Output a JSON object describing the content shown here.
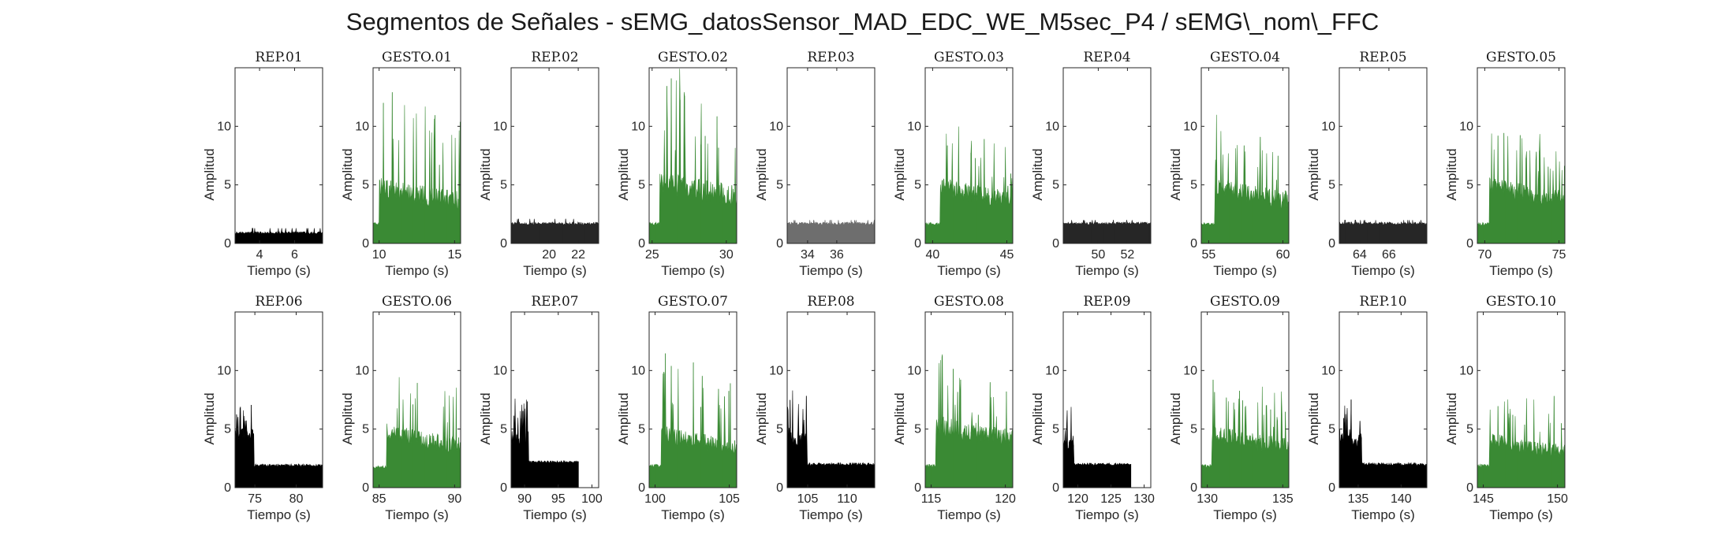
{
  "figure_title": "Segmentos de Señales - sEMG_datosSensor_MAD_EDC_WE_M5sec_P4 / sEMG\\_nom\\_FFC",
  "colors": {
    "rep": "#000000",
    "rep_alt": "#262626",
    "rep_gray": "#6e6e6e",
    "gesto": "#3a8a34",
    "axis": "#262626"
  },
  "chart_data": [
    {
      "type": "bar",
      "title": "REP_01",
      "kind": "rep",
      "color": "#000000",
      "xlim": [
        2.6,
        7.6
      ],
      "ylim": [
        0,
        15
      ],
      "xticks": [
        4,
        6
      ],
      "yticks": [
        0,
        5,
        10
      ],
      "xlabel": "Tiempo (s)",
      "ylabel": "Amplitud",
      "x_range": [
        2.6,
        7.6
      ],
      "baseline": 0.9,
      "noise": 0.2,
      "peak": 1.3,
      "seed": 1
    },
    {
      "type": "bar",
      "title": "GESTO_01",
      "kind": "gesto",
      "color": "#3a8a34",
      "xlim": [
        9.6,
        15.4
      ],
      "ylim": [
        0,
        15
      ],
      "xticks": [
        10,
        15
      ],
      "yticks": [
        0,
        5,
        10
      ],
      "xlabel": "Tiempo (s)",
      "ylabel": "Amplitud",
      "x_range": [
        9.6,
        15.4
      ],
      "onset": 10.0,
      "pre_level": 1.8,
      "baseline": 3.5,
      "noise": 1.7,
      "peak": 12.0,
      "seed": 2
    },
    {
      "type": "bar",
      "title": "REP_02",
      "kind": "rep",
      "color": "#262626",
      "xlim": [
        17.4,
        23.4
      ],
      "ylim": [
        0,
        15
      ],
      "xticks": [
        20,
        22
      ],
      "yticks": [
        0,
        5,
        10
      ],
      "xlabel": "Tiempo (s)",
      "ylabel": "Amplitud",
      "x_range": [
        17.4,
        23.4
      ],
      "baseline": 1.7,
      "noise": 0.25,
      "peak": 2.1,
      "seed": 3
    },
    {
      "type": "bar",
      "title": "GESTO_02",
      "kind": "gesto",
      "color": "#3a8a34",
      "xlim": [
        24.8,
        30.7
      ],
      "ylim": [
        0,
        15
      ],
      "xticks": [
        25,
        30
      ],
      "yticks": [
        0,
        5,
        10
      ],
      "xlabel": "Tiempo (s)",
      "ylabel": "Amplitud",
      "x_range": [
        24.8,
        30.7
      ],
      "onset": 25.5,
      "pre_level": 1.8,
      "baseline": 3.9,
      "noise": 1.9,
      "peak": 14.8,
      "seed": 4
    },
    {
      "type": "bar",
      "title": "REP_03",
      "kind": "rep",
      "color": "#6e6e6e",
      "xlim": [
        32.6,
        38.6
      ],
      "ylim": [
        0,
        15
      ],
      "xticks": [
        34,
        36
      ],
      "yticks": [
        0,
        5,
        10
      ],
      "xlabel": "Tiempo (s)",
      "ylabel": "Amplitud",
      "x_range": [
        32.6,
        38.6
      ],
      "baseline": 1.7,
      "noise": 0.25,
      "peak": 2.0,
      "seed": 5
    },
    {
      "type": "bar",
      "title": "GESTO_03",
      "kind": "gesto",
      "color": "#3a8a34",
      "xlim": [
        39.5,
        45.4
      ],
      "ylim": [
        0,
        15
      ],
      "xticks": [
        40,
        45
      ],
      "yticks": [
        0,
        5,
        10
      ],
      "xlabel": "Tiempo (s)",
      "ylabel": "Amplitud",
      "x_range": [
        39.5,
        45.4
      ],
      "onset": 40.5,
      "pre_level": 1.8,
      "baseline": 3.6,
      "noise": 1.6,
      "peak": 9.8,
      "seed": 6
    },
    {
      "type": "bar",
      "title": "REP_04",
      "kind": "rep",
      "color": "#262626",
      "xlim": [
        47.6,
        53.6
      ],
      "ylim": [
        0,
        15
      ],
      "xticks": [
        50,
        52
      ],
      "yticks": [
        0,
        5,
        10
      ],
      "xlabel": "Tiempo (s)",
      "ylabel": "Amplitud",
      "x_range": [
        47.6,
        53.6
      ],
      "baseline": 1.7,
      "noise": 0.25,
      "peak": 2.0,
      "seed": 7
    },
    {
      "type": "bar",
      "title": "GESTO_04",
      "kind": "gesto",
      "color": "#3a8a34",
      "xlim": [
        54.5,
        60.4
      ],
      "ylim": [
        0,
        15
      ],
      "xticks": [
        55,
        60
      ],
      "yticks": [
        0,
        5,
        10
      ],
      "xlabel": "Tiempo (s)",
      "ylabel": "Amplitud",
      "x_range": [
        54.5,
        60.4
      ],
      "onset": 55.4,
      "pre_level": 1.8,
      "baseline": 3.6,
      "noise": 1.6,
      "peak": 9.4,
      "seed": 8
    },
    {
      "type": "bar",
      "title": "REP_05",
      "kind": "rep",
      "color": "#262626",
      "xlim": [
        62.6,
        68.6
      ],
      "ylim": [
        0,
        15
      ],
      "xticks": [
        64,
        66
      ],
      "yticks": [
        0,
        5,
        10
      ],
      "xlabel": "Tiempo (s)",
      "ylabel": "Amplitud",
      "x_range": [
        62.6,
        68.6
      ],
      "baseline": 1.7,
      "noise": 0.25,
      "peak": 2.0,
      "seed": 9
    },
    {
      "type": "bar",
      "title": "GESTO_05",
      "kind": "gesto",
      "color": "#3a8a34",
      "xlim": [
        69.5,
        75.4
      ],
      "ylim": [
        0,
        15
      ],
      "xticks": [
        70,
        75
      ],
      "yticks": [
        0,
        5,
        10
      ],
      "xlabel": "Tiempo (s)",
      "ylabel": "Amplitud",
      "x_range": [
        69.5,
        75.4
      ],
      "onset": 70.3,
      "pre_level": 1.8,
      "baseline": 3.7,
      "noise": 1.5,
      "peak": 9.4,
      "seed": 10
    },
    {
      "type": "bar",
      "title": "REP_06",
      "kind": "rep_burst",
      "color": "#000000",
      "xlim": [
        72.6,
        83.2
      ],
      "ylim": [
        0,
        15
      ],
      "xticks": [
        75,
        80
      ],
      "yticks": [
        0,
        5,
        10
      ],
      "xlabel": "Tiempo (s)",
      "ylabel": "Amplitud",
      "x_range": [
        72.6,
        83.2
      ],
      "burst_end": 74.9,
      "burst_level": 4.2,
      "baseline": 1.9,
      "noise": 0.25,
      "peak": 6.9,
      "seed": 11
    },
    {
      "type": "bar",
      "title": "GESTO_06",
      "kind": "gesto",
      "color": "#3a8a34",
      "xlim": [
        84.6,
        90.4
      ],
      "ylim": [
        0,
        15
      ],
      "xticks": [
        85,
        90
      ],
      "yticks": [
        0,
        5,
        10
      ],
      "xlabel": "Tiempo (s)",
      "ylabel": "Amplitud",
      "x_range": [
        84.6,
        90.4
      ],
      "onset": 85.5,
      "pre_level": 1.9,
      "baseline": 3.5,
      "noise": 1.5,
      "peak": 10.1,
      "seed": 12
    },
    {
      "type": "bar",
      "title": "REP_07",
      "kind": "rep_burst",
      "color": "#000000",
      "xlim": [
        88.0,
        101.0
      ],
      "ylim": [
        0,
        15
      ],
      "xticks": [
        90,
        95,
        100
      ],
      "yticks": [
        0,
        5,
        10
      ],
      "xlabel": "Tiempo (s)",
      "ylabel": "Amplitud",
      "x_range": [
        88.0,
        98.0
      ],
      "burst_end": 90.6,
      "burst_level": 4.0,
      "baseline": 2.2,
      "noise": 0.2,
      "peak": 7.6,
      "seed": 13
    },
    {
      "type": "bar",
      "title": "GESTO_07",
      "kind": "gesto",
      "color": "#3a8a34",
      "xlim": [
        99.6,
        105.5
      ],
      "ylim": [
        0,
        15
      ],
      "xticks": [
        100,
        105
      ],
      "yticks": [
        0,
        5,
        10
      ],
      "xlabel": "Tiempo (s)",
      "ylabel": "Amplitud",
      "x_range": [
        99.6,
        105.5
      ],
      "onset": 100.4,
      "pre_level": 2.0,
      "baseline": 3.4,
      "noise": 1.5,
      "peak": 10.4,
      "seed": 14
    },
    {
      "type": "bar",
      "title": "REP_08",
      "kind": "rep_burst",
      "color": "#000000",
      "xlim": [
        102.4,
        113.5
      ],
      "ylim": [
        0,
        15
      ],
      "xticks": [
        105,
        110
      ],
      "yticks": [
        0,
        5,
        10
      ],
      "xlabel": "Tiempo (s)",
      "ylabel": "Amplitud",
      "x_range": [
        102.4,
        113.5
      ],
      "burst_end": 104.9,
      "burst_level": 3.8,
      "baseline": 2.0,
      "noise": 0.25,
      "peak": 8.3,
      "seed": 15
    },
    {
      "type": "bar",
      "title": "GESTO_08",
      "kind": "gesto",
      "color": "#3a8a34",
      "xlim": [
        114.6,
        120.5
      ],
      "ylim": [
        0,
        15
      ],
      "xticks": [
        115,
        120
      ],
      "yticks": [
        0,
        5,
        10
      ],
      "xlabel": "Tiempo (s)",
      "ylabel": "Amplitud",
      "x_range": [
        114.6,
        120.5
      ],
      "onset": 115.3,
      "pre_level": 2.0,
      "baseline": 4.0,
      "noise": 1.8,
      "peak": 10.3,
      "seed": 16
    },
    {
      "type": "bar",
      "title": "REP_09",
      "kind": "rep_burst",
      "color": "#000000",
      "xlim": [
        117.8,
        131.0
      ],
      "ylim": [
        0,
        15
      ],
      "xticks": [
        120,
        125,
        130
      ],
      "yticks": [
        0,
        5,
        10
      ],
      "xlabel": "Tiempo (s)",
      "ylabel": "Amplitud",
      "x_range": [
        117.8,
        128.0
      ],
      "burst_end": 119.4,
      "burst_level": 3.6,
      "baseline": 2.0,
      "noise": 0.2,
      "peak": 6.6,
      "seed": 17
    },
    {
      "type": "bar",
      "title": "GESTO_09",
      "kind": "gesto",
      "color": "#3a8a34",
      "xlim": [
        129.6,
        135.4
      ],
      "ylim": [
        0,
        15
      ],
      "xticks": [
        130,
        135
      ],
      "yticks": [
        0,
        5,
        10
      ],
      "xlabel": "Tiempo (s)",
      "ylabel": "Amplitud",
      "x_range": [
        129.6,
        135.4
      ],
      "onset": 130.3,
      "pre_level": 2.0,
      "baseline": 3.4,
      "noise": 1.5,
      "peak": 8.6,
      "seed": 18
    },
    {
      "type": "bar",
      "title": "REP_10",
      "kind": "rep_burst",
      "color": "#000000",
      "xlim": [
        132.8,
        143.0
      ],
      "ylim": [
        0,
        15
      ],
      "xticks": [
        135,
        140
      ],
      "yticks": [
        0,
        5,
        10
      ],
      "xlabel": "Tiempo (s)",
      "ylabel": "Amplitud",
      "x_range": [
        132.8,
        143.0
      ],
      "burst_end": 135.4,
      "burst_level": 3.8,
      "baseline": 2.0,
      "noise": 0.25,
      "peak": 7.0,
      "seed": 19
    },
    {
      "type": "bar",
      "title": "GESTO_10",
      "kind": "gesto",
      "color": "#3a8a34",
      "xlim": [
        144.6,
        150.5
      ],
      "ylim": [
        0,
        15
      ],
      "xticks": [
        145,
        150
      ],
      "yticks": [
        0,
        5,
        10
      ],
      "xlabel": "Tiempo (s)",
      "ylabel": "Amplitud",
      "x_range": [
        144.6,
        150.5
      ],
      "onset": 145.4,
      "pre_level": 2.0,
      "baseline": 3.0,
      "noise": 1.3,
      "peak": 8.3,
      "seed": 20
    }
  ]
}
